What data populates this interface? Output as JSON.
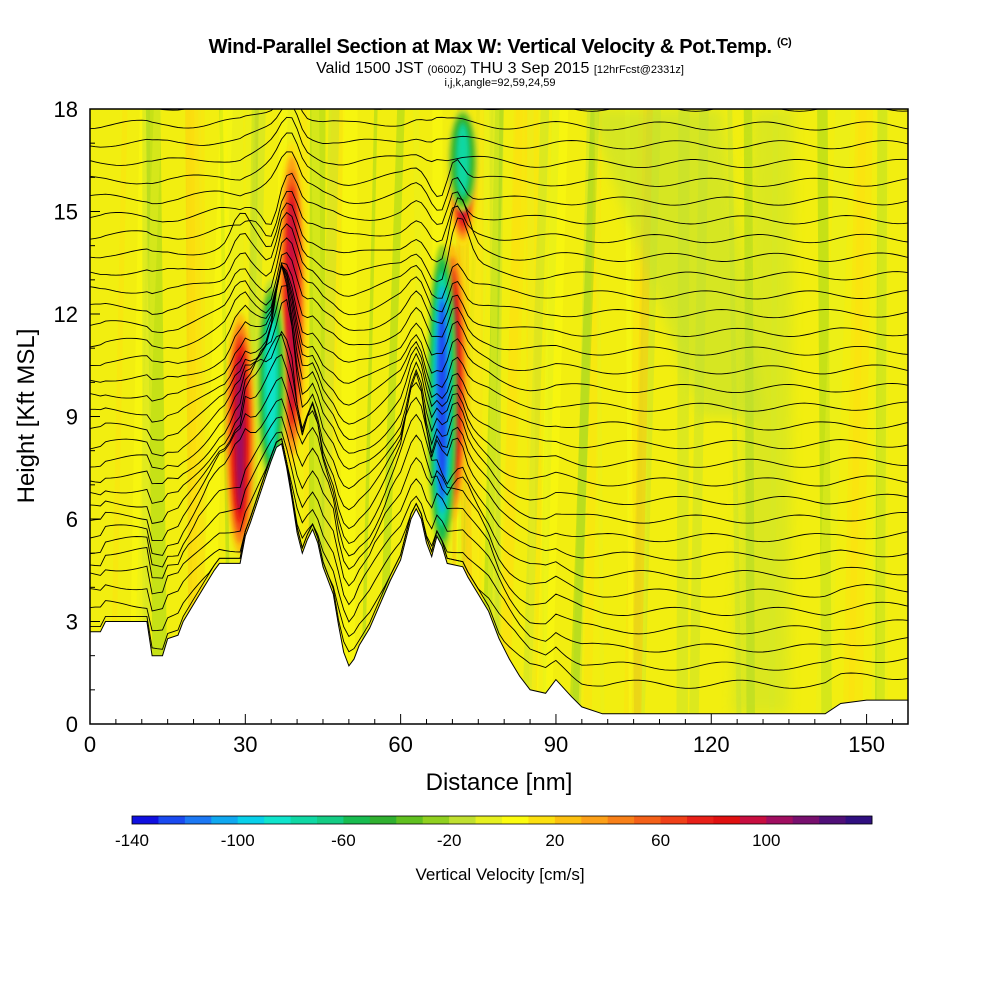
{
  "header": {
    "title": "Wind-Parallel Section at Max W: Vertical Velocity & Pot.Temp.",
    "copyright": "(C)",
    "valid_prefix": "Valid 1500 JST",
    "valid_utc": "(0600Z)",
    "valid_date": "THU 3 Sep 2015",
    "forecast": "[12hrFcst@2331z]",
    "params": "i,j,k,angle=92,59,24,59"
  },
  "chart_data": {
    "type": "heatmap",
    "title": "Wind-Parallel Section at Max W: Vertical Velocity & Pot.Temp.",
    "xlabel": "Distance [nm]",
    "ylabel": "Height [Kft MSL]",
    "xlim": [
      0,
      158
    ],
    "ylim": [
      0,
      18
    ],
    "x_ticks": [
      0,
      30,
      60,
      90,
      120,
      150
    ],
    "y_ticks": [
      0,
      3,
      6,
      9,
      12,
      15,
      18
    ],
    "colorbar": {
      "label": "Vertical Velocity [cm/s]",
      "tick_labels": [
        -140,
        -100,
        -60,
        -20,
        20,
        60,
        100
      ],
      "levels": [
        -140,
        -130,
        -120,
        -110,
        -100,
        -90,
        -80,
        -70,
        -60,
        -50,
        -40,
        -30,
        -20,
        -10,
        0,
        10,
        20,
        30,
        40,
        50,
        60,
        70,
        80,
        90,
        100,
        110,
        120,
        130,
        140
      ],
      "colors": [
        "#1010e0",
        "#1a4af0",
        "#1c78f4",
        "#10a8f0",
        "#08d0ea",
        "#10e4cc",
        "#10d8a4",
        "#14cc84",
        "#18bc50",
        "#30b030",
        "#60c020",
        "#90d020",
        "#c0e030",
        "#e6f020",
        "#fcfc10",
        "#fce010",
        "#fcc010",
        "#fca018",
        "#f88018",
        "#f46018",
        "#f04018",
        "#e82018",
        "#e01010",
        "#c80e40",
        "#a00e60",
        "#78106e",
        "#501078",
        "#301080"
      ]
    },
    "terrain_kft": [
      [
        0,
        2.7
      ],
      [
        2,
        2.7
      ],
      [
        3,
        3
      ],
      [
        11,
        3
      ],
      [
        12,
        2
      ],
      [
        14,
        2
      ],
      [
        15,
        2.5
      ],
      [
        17,
        2.6
      ],
      [
        18,
        3
      ],
      [
        20,
        3.5
      ],
      [
        22,
        4
      ],
      [
        24,
        4.5
      ],
      [
        25,
        4.7
      ],
      [
        29,
        4.7
      ],
      [
        30,
        5.5
      ],
      [
        31,
        5.9
      ],
      [
        33,
        6.8
      ],
      [
        35,
        7.7
      ],
      [
        36,
        8.1
      ],
      [
        37,
        8.2
      ],
      [
        38,
        7.5
      ],
      [
        39,
        6.6
      ],
      [
        40,
        5.6
      ],
      [
        41,
        5
      ],
      [
        42,
        5.4
      ],
      [
        43,
        5.7
      ],
      [
        44,
        5.3
      ],
      [
        45,
        4.6
      ],
      [
        47,
        3.8
      ],
      [
        48,
        2.9
      ],
      [
        49,
        2.1
      ],
      [
        50,
        1.7
      ],
      [
        51,
        1.9
      ],
      [
        52,
        2.3
      ],
      [
        54,
        2.8
      ],
      [
        56,
        3.5
      ],
      [
        58,
        4.2
      ],
      [
        60,
        4.8
      ],
      [
        61,
        5.4
      ],
      [
        62,
        6
      ],
      [
        63,
        6.3
      ],
      [
        64,
        6
      ],
      [
        65,
        5.3
      ],
      [
        66,
        4.9
      ],
      [
        67,
        5.5
      ],
      [
        68,
        5.2
      ],
      [
        69,
        4.7
      ],
      [
        72,
        4.6
      ],
      [
        73,
        4.3
      ],
      [
        75,
        3.8
      ],
      [
        77,
        3.3
      ],
      [
        79,
        2.5
      ],
      [
        81,
        1.9
      ],
      [
        83,
        1.4
      ],
      [
        85,
        1
      ],
      [
        88,
        0.9
      ],
      [
        90,
        1.3
      ],
      [
        93,
        0.8
      ],
      [
        95,
        0.5
      ],
      [
        99,
        0.3
      ],
      [
        142,
        0.3
      ],
      [
        145,
        0.6
      ],
      [
        150,
        0.7
      ],
      [
        158,
        0.7
      ]
    ],
    "updrafts": [
      {
        "x": 29,
        "y0": 5,
        "y1": 12,
        "peak_cms": 100
      },
      {
        "x": 39,
        "y0": 7.5,
        "y1": 17,
        "peak_cms": 90
      },
      {
        "x": 70,
        "y0": 6,
        "y1": 14,
        "peak_cms": 110
      },
      {
        "x": 72,
        "y0": 14,
        "y1": 18,
        "peak_cms": 90
      }
    ],
    "downdrafts": [
      {
        "x": 35,
        "y0": 7,
        "y1": 13,
        "peak_cms": -90
      },
      {
        "x": 68,
        "y0": 5,
        "y1": 14,
        "peak_cms": -130
      },
      {
        "x": 72,
        "y0": 15,
        "y1": 18,
        "peak_cms": -80
      }
    ],
    "isentrope_spacing_kft": 0.55,
    "isentrope_count": 36
  }
}
